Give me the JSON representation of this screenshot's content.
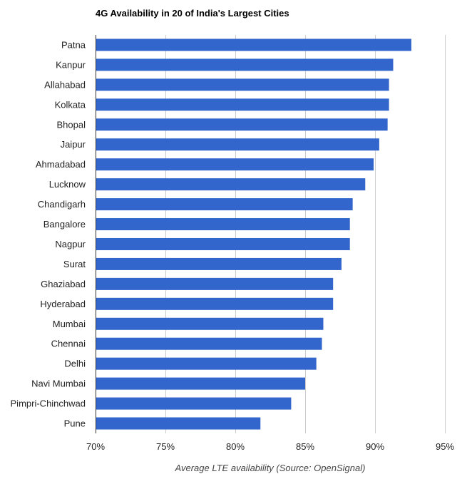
{
  "chart_data": {
    "type": "bar",
    "orientation": "horizontal",
    "title": "4G Availability in 20 of India's Largest Cities",
    "xlabel": "Average LTE availability (Source: OpenSignal)",
    "ylabel": "",
    "xlim": [
      70,
      95
    ],
    "xticks": [
      70,
      75,
      80,
      85,
      90,
      95
    ],
    "tick_suffix": "%",
    "grid": true,
    "legend": "none",
    "bar_color": "#3366cc",
    "categories": [
      "Patna",
      "Kanpur",
      "Allahabad",
      "Kolkata",
      "Bhopal",
      "Jaipur",
      "Ahmadabad",
      "Lucknow",
      "Chandigarh",
      "Bangalore",
      "Nagpur",
      "Surat",
      "Ghaziabad",
      "Hyderabad",
      "Mumbai",
      "Chennai",
      "Delhi",
      "Navi Mumbai",
      "Pimpri-Chinchwad",
      "Pune"
    ],
    "values": [
      92.6,
      91.3,
      91.0,
      91.0,
      90.9,
      90.3,
      89.9,
      89.3,
      88.4,
      88.2,
      88.2,
      87.6,
      87.0,
      87.0,
      86.3,
      86.2,
      85.8,
      85.0,
      84.0,
      81.8
    ]
  }
}
